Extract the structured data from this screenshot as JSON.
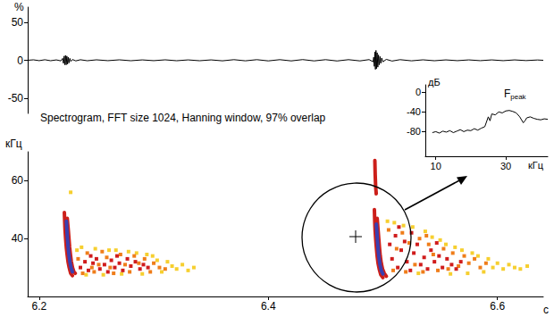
{
  "chart_data": [
    {
      "type": "line",
      "ylabel": "%",
      "xlim": [
        6.19,
        6.64
      ],
      "ylim": [
        -70,
        70
      ],
      "yticks": [
        -50,
        0,
        50
      ],
      "tick_labels": "y",
      "grid": false,
      "color": "#000000",
      "x": [
        6.19,
        6.195,
        6.2,
        6.205,
        6.21,
        6.215,
        6.219,
        6.2205,
        6.2212,
        6.2218,
        6.2224,
        6.223,
        6.2236,
        6.2242,
        6.2248,
        6.2254,
        6.226,
        6.2268,
        6.2276,
        6.229,
        6.232,
        6.236,
        6.242,
        6.25,
        6.26,
        6.27,
        6.28,
        6.29,
        6.3,
        6.31,
        6.32,
        6.33,
        6.34,
        6.35,
        6.36,
        6.37,
        6.38,
        6.39,
        6.4,
        6.41,
        6.42,
        6.43,
        6.44,
        6.45,
        6.46,
        6.47,
        6.48,
        6.488,
        6.4915,
        6.492,
        6.4925,
        6.493,
        6.4935,
        6.494,
        6.4945,
        6.495,
        6.4956,
        6.4962,
        6.4968,
        6.4975,
        6.4982,
        6.499,
        6.5,
        6.503,
        6.508,
        6.515,
        6.525,
        6.535,
        6.545,
        6.555,
        6.565,
        6.575,
        6.585,
        6.595,
        6.605,
        6.615,
        6.625,
        6.635,
        6.64
      ],
      "values": [
        0,
        0.6,
        -0.5,
        0.7,
        -0.6,
        0.5,
        -0.8,
        2.5,
        -4,
        5.5,
        -6,
        6.5,
        -6,
        5.5,
        -5,
        4,
        -3.5,
        2.5,
        -1.5,
        1,
        -0.8,
        0.7,
        -0.6,
        0.6,
        -0.5,
        0.6,
        -0.6,
        0.5,
        -0.5,
        0.6,
        -0.6,
        0.5,
        -0.6,
        0.5,
        -0.7,
        0.8,
        -0.7,
        0.8,
        -0.8,
        0.8,
        -0.8,
        0.9,
        -0.8,
        0.8,
        -0.9,
        0.8,
        -0.8,
        0.9,
        -2,
        4,
        -8,
        11,
        -12,
        13,
        -11,
        10,
        -9,
        7,
        -6,
        5,
        -4,
        3,
        -2,
        1.2,
        -1,
        0.8,
        -0.7,
        0.6,
        -0.6,
        0.5,
        -0.5,
        0.5,
        -0.5,
        0.5,
        -0.5,
        0.5,
        -0.4,
        0.4,
        0
      ]
    },
    {
      "type": "scatter",
      "title": "Spectrogram, FFT size 1024, Hanning window, 97% overlap",
      "xlabel": "с",
      "ylabel": "кГц",
      "xlim": [
        6.19,
        6.64
      ],
      "ylim": [
        20,
        70
      ],
      "xticks": [
        6.2,
        6.4,
        6.6
      ],
      "yticks": [
        40,
        60
      ],
      "grid": false,
      "series": [
        {
          "type": "scatter",
          "marker": "square",
          "color": "#f6cf2f",
          "points": [
            [
              6.233,
              36
            ],
            [
              6.237,
              37
            ],
            [
              6.241,
              27.5
            ],
            [
              6.249,
              36.5
            ],
            [
              6.256,
              27.5
            ],
            [
              6.261,
              36
            ],
            [
              6.267,
              36
            ],
            [
              6.272,
              27.8
            ],
            [
              6.278,
              35.5
            ],
            [
              6.285,
              35
            ],
            [
              6.29,
              27.8
            ],
            [
              6.294,
              34.5
            ],
            [
              6.299,
              34
            ],
            [
              6.303,
              32.5
            ],
            [
              6.307,
              28.5
            ],
            [
              6.312,
              32
            ],
            [
              6.316,
              30.5
            ],
            [
              6.32,
              29.5
            ],
            [
              6.325,
              31
            ],
            [
              6.33,
              29
            ],
            [
              6.2275,
              56
            ],
            [
              6.335,
              30
            ],
            [
              6.504,
              46
            ],
            [
              6.51,
              45.5
            ],
            [
              6.518,
              44.5
            ],
            [
              6.526,
              44
            ],
            [
              6.531,
              28
            ],
            [
              6.537,
              42.5
            ],
            [
              6.543,
              40.5
            ],
            [
              6.55,
              39.5
            ],
            [
              6.555,
              38
            ],
            [
              6.559,
              27.8
            ],
            [
              6.563,
              37
            ],
            [
              6.569,
              36
            ],
            [
              6.574,
              28
            ],
            [
              6.578,
              35
            ],
            [
              6.583,
              34
            ],
            [
              6.588,
              28.5
            ],
            [
              6.592,
              33
            ],
            [
              6.596,
              30
            ],
            [
              6.6,
              31.5
            ],
            [
              6.605,
              29.5
            ],
            [
              6.61,
              31
            ],
            [
              6.615,
              30
            ],
            [
              6.62,
              29.5
            ],
            [
              6.626,
              30.5
            ]
          ]
        },
        {
          "type": "scatter",
          "marker": "square",
          "color": "#ef7d1a",
          "points": [
            [
              6.234,
              33
            ],
            [
              6.238,
              28
            ],
            [
              6.242,
              35
            ],
            [
              6.248,
              28.5
            ],
            [
              6.252,
              31
            ],
            [
              6.255,
              35.5
            ],
            [
              6.259,
              33.5
            ],
            [
              6.262,
              30
            ],
            [
              6.265,
              28
            ],
            [
              6.271,
              34.5
            ],
            [
              6.275,
              31
            ],
            [
              6.279,
              28.5
            ],
            [
              6.283,
              34
            ],
            [
              6.287,
              31.5
            ],
            [
              6.292,
              33
            ],
            [
              6.297,
              28.5
            ],
            [
              6.3,
              31.5
            ],
            [
              6.305,
              30
            ],
            [
              6.31,
              29.5
            ],
            [
              6.246,
              30
            ],
            [
              6.505,
              43
            ],
            [
              6.509,
              29
            ],
            [
              6.512,
              36.5
            ],
            [
              6.517,
              42
            ],
            [
              6.52,
              28.5
            ],
            [
              6.523,
              38.5
            ],
            [
              6.528,
              31
            ],
            [
              6.532,
              40
            ],
            [
              6.535,
              28.5
            ],
            [
              6.54,
              38
            ],
            [
              6.544,
              34.5
            ],
            [
              6.548,
              29
            ],
            [
              6.553,
              36.5
            ],
            [
              6.557,
              29.5
            ],
            [
              6.561,
              35
            ],
            [
              6.566,
              30.5
            ],
            [
              6.571,
              34
            ],
            [
              6.575,
              31.5
            ],
            [
              6.58,
              33
            ],
            [
              6.585,
              30
            ],
            [
              6.59,
              31.5
            ],
            [
              6.538,
              41
            ]
          ]
        },
        {
          "type": "scatter",
          "marker": "square",
          "color": "#d01c1c",
          "points": [
            [
              6.236,
              30
            ],
            [
              6.24,
              32
            ],
            [
              6.243,
              29
            ],
            [
              6.247,
              31.5
            ],
            [
              6.25,
              33
            ],
            [
              6.253,
              29.5
            ],
            [
              6.257,
              31
            ],
            [
              6.26,
              28.5
            ],
            [
              6.263,
              32.5
            ],
            [
              6.266,
              30
            ],
            [
              6.27,
              31.5
            ],
            [
              6.273,
              29
            ],
            [
              6.277,
              33
            ],
            [
              6.28,
              30.5
            ],
            [
              6.284,
              32
            ],
            [
              6.288,
              29.5
            ],
            [
              6.291,
              31
            ],
            [
              6.295,
              30
            ],
            [
              6.245,
              34
            ],
            [
              6.268,
              34
            ],
            [
              6.506,
              38
            ],
            [
              6.508,
              33
            ],
            [
              6.511,
              41
            ],
            [
              6.513,
              30
            ],
            [
              6.516,
              36
            ],
            [
              6.519,
              39
            ],
            [
              6.521,
              32
            ],
            [
              6.524,
              29
            ],
            [
              6.527,
              35
            ],
            [
              6.53,
              38
            ],
            [
              6.533,
              31
            ],
            [
              6.536,
              33.5
            ],
            [
              6.539,
              29.5
            ],
            [
              6.542,
              36
            ],
            [
              6.545,
              32
            ],
            [
              6.549,
              34
            ],
            [
              6.552,
              30
            ],
            [
              6.556,
              33
            ],
            [
              6.56,
              31
            ],
            [
              6.564,
              29.5
            ],
            [
              6.568,
              32
            ],
            [
              6.514,
              44
            ],
            [
              6.525,
              42
            ],
            [
              6.547,
              38.5
            ]
          ]
        },
        {
          "type": "line",
          "color": "#cc1f1a",
          "points": [
            [
              6.222,
              49
            ],
            [
              6.2223,
              46
            ],
            [
              6.2226,
              43
            ],
            [
              6.2231,
              40
            ],
            [
              6.2237,
              37
            ],
            [
              6.2244,
              34.5
            ],
            [
              6.2252,
              32
            ],
            [
              6.2262,
              30
            ],
            [
              6.2275,
              28
            ],
            [
              6.229,
              27.2
            ]
          ]
        },
        {
          "type": "line",
          "color": "#cc1f1a",
          "points": [
            [
              6.2245,
              47
            ],
            [
              6.2254,
              43
            ],
            [
              6.226,
              40
            ],
            [
              6.2266,
              37
            ],
            [
              6.2273,
              34.5
            ],
            [
              6.2281,
              32
            ],
            [
              6.2291,
              30
            ],
            [
              6.2303,
              28.5
            ],
            [
              6.2315,
              28
            ]
          ]
        },
        {
          "type": "line",
          "color": "#3a3fb0",
          "points": [
            [
              6.2238,
              46
            ],
            [
              6.2242,
              43
            ],
            [
              6.2247,
              40
            ],
            [
              6.2253,
              37
            ],
            [
              6.226,
              34.5
            ],
            [
              6.2268,
              32
            ],
            [
              6.2278,
              30
            ],
            [
              6.229,
              28.5
            ]
          ]
        },
        {
          "type": "line",
          "color": "#cc1f1a",
          "points": [
            [
              6.4926,
              50
            ],
            [
              6.4929,
              46
            ],
            [
              6.4932,
              43
            ],
            [
              6.4937,
              40
            ],
            [
              6.4943,
              37
            ],
            [
              6.495,
              34
            ],
            [
              6.4958,
              31.5
            ],
            [
              6.4968,
              29.5
            ],
            [
              6.4982,
              27.5
            ],
            [
              6.5,
              26.5
            ]
          ]
        },
        {
          "type": "line",
          "color": "#cc1f1a",
          "points": [
            [
              6.495,
              47
            ],
            [
              6.4958,
              43
            ],
            [
              6.4964,
              40
            ],
            [
              6.497,
              37
            ],
            [
              6.4977,
              34
            ],
            [
              6.4986,
              31.5
            ],
            [
              6.4997,
              29.5
            ],
            [
              6.5012,
              28
            ],
            [
              6.503,
              27
            ]
          ]
        },
        {
          "type": "line",
          "color": "#3a3fb0",
          "points": [
            [
              6.4943,
              45
            ],
            [
              6.4948,
              42
            ],
            [
              6.4953,
              39
            ],
            [
              6.4959,
              36
            ],
            [
              6.4966,
              33.5
            ],
            [
              6.4975,
              31
            ],
            [
              6.4986,
              29
            ],
            [
              6.5,
              27.8
            ]
          ]
        },
        {
          "type": "line",
          "color": "#cc1f1a",
          "points": [
            [
              6.493,
              67
            ],
            [
              6.4933,
              62
            ],
            [
              6.4937,
              58
            ],
            [
              6.4942,
              55.5
            ]
          ]
        }
      ]
    },
    {
      "type": "line",
      "xlabel": "кГц",
      "ylabel": "дБ",
      "xlim": [
        7,
        42
      ],
      "ylim": [
        -130,
        15
      ],
      "xticks": [
        10,
        30
      ],
      "yticks": [
        0,
        -40,
        -80
      ],
      "grid": false,
      "color": "#000000",
      "annotations": [
        {
          "text": "F",
          "subscript": "peak",
          "x": 31,
          "y": -37
        }
      ],
      "x": [
        9,
        10,
        11,
        12,
        13,
        14,
        15,
        16,
        17,
        18,
        19,
        20,
        21,
        22,
        23,
        24,
        25,
        25.5,
        26,
        27,
        28,
        29,
        30,
        31,
        32,
        33,
        34,
        35,
        35.5,
        36,
        37,
        38,
        39,
        40,
        41,
        42
      ],
      "values": [
        -82,
        -80,
        -83,
        -79,
        -81,
        -78,
        -82,
        -79,
        -76,
        -80,
        -77,
        -78,
        -74,
        -77,
        -73,
        -70,
        -50,
        -58,
        -44,
        -46,
        -40,
        -42,
        -38,
        -37,
        -39,
        -42,
        -50,
        -62,
        -58,
        -52,
        -50,
        -53,
        -55,
        -56,
        -54,
        -55
      ]
    }
  ]
}
